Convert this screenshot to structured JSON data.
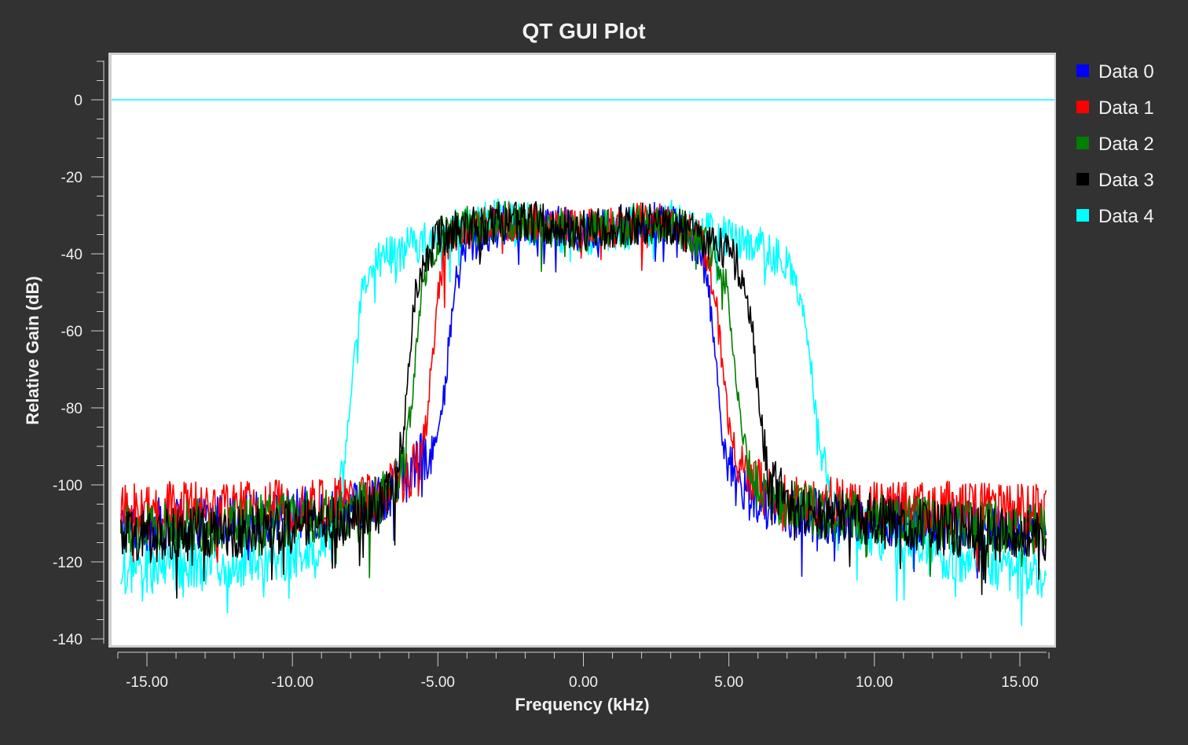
{
  "chart_data": {
    "type": "line",
    "title": "QT GUI Plot",
    "xlabel": "Frequency (kHz)",
    "ylabel": "Relative Gain (dB)",
    "xlim": [
      -16,
      16
    ],
    "ylim": [
      -140,
      10
    ],
    "x_ticks": [
      {
        "value": -15,
        "label": "-15.00"
      },
      {
        "value": -10,
        "label": "-10.00"
      },
      {
        "value": -5,
        "label": "-5.00"
      },
      {
        "value": 0,
        "label": "0.00"
      },
      {
        "value": 5,
        "label": "5.00"
      },
      {
        "value": 10,
        "label": "10.00"
      },
      {
        "value": 15,
        "label": "15.00"
      }
    ],
    "y_ticks": [
      {
        "value": 0,
        "label": "0"
      },
      {
        "value": -20,
        "label": "-20"
      },
      {
        "value": -40,
        "label": "-40"
      },
      {
        "value": -60,
        "label": "-60"
      },
      {
        "value": -80,
        "label": "-80"
      },
      {
        "value": -100,
        "label": "-100"
      },
      {
        "value": -120,
        "label": "-120"
      },
      {
        "value": -140,
        "label": "-140"
      }
    ],
    "grid": false,
    "legend_position": "right",
    "reference_line": {
      "y": 0,
      "color": "#00ffff"
    },
    "series": [
      {
        "name": "Data 0",
        "color": "#0000ff",
        "x": [
          -16,
          -14,
          -12,
          -10,
          -8,
          -7,
          -6.5,
          -6,
          -5.5,
          -5,
          -4.8,
          -4.6,
          -4.4,
          -4.2,
          -4,
          -3,
          -2,
          -1,
          0,
          1,
          2,
          3,
          4,
          4.2,
          4.4,
          4.6,
          4.8,
          5,
          5.5,
          6,
          6.5,
          7,
          8,
          10,
          12,
          14,
          16
        ],
        "y": [
          -111,
          -110,
          -109,
          -108,
          -106,
          -104,
          -100,
          -97,
          -93,
          -88,
          -78,
          -62,
          -48,
          -42,
          -38,
          -33,
          -32,
          -33,
          -34,
          -33,
          -32,
          -32,
          -38,
          -44,
          -56,
          -72,
          -88,
          -96,
          -101,
          -104,
          -106,
          -107,
          -108,
          -109,
          -110,
          -111,
          -112
        ]
      },
      {
        "name": "Data 1",
        "color": "#ff0000",
        "x": [
          -16,
          -14,
          -12,
          -10,
          -8,
          -7,
          -6.5,
          -6,
          -5.6,
          -5.4,
          -5.2,
          -5,
          -4.8,
          -4.5,
          -4,
          -3,
          -2,
          -1,
          0,
          1,
          2,
          3,
          4,
          4.3,
          4.6,
          4.8,
          5,
          5.2,
          5.5,
          6,
          6.5,
          7,
          8,
          10,
          12,
          14,
          16
        ],
        "y": [
          -107,
          -106,
          -106,
          -105,
          -105,
          -103,
          -100,
          -97,
          -92,
          -84,
          -68,
          -50,
          -40,
          -36,
          -34,
          -32,
          -31,
          -33,
          -34,
          -33,
          -32,
          -32,
          -36,
          -42,
          -55,
          -72,
          -84,
          -92,
          -97,
          -100,
          -103,
          -104,
          -105,
          -105,
          -106,
          -106,
          -107
        ]
      },
      {
        "name": "Data 2",
        "color": "#008000",
        "x": [
          -16,
          -14,
          -12,
          -10,
          -8,
          -7,
          -6.5,
          -6.2,
          -6,
          -5.8,
          -5.6,
          -5.4,
          -5.2,
          -5,
          -4.5,
          -4,
          -3,
          -2,
          -1,
          0,
          1,
          2,
          3,
          4,
          4.4,
          4.8,
          5,
          5.2,
          5.4,
          5.6,
          6,
          6.5,
          7,
          8,
          10,
          12,
          14,
          16
        ],
        "y": [
          -112,
          -111,
          -110,
          -109,
          -107,
          -104,
          -101,
          -95,
          -85,
          -70,
          -52,
          -42,
          -38,
          -36,
          -34,
          -33,
          -32,
          -31,
          -33,
          -34,
          -33,
          -32,
          -32,
          -36,
          -40,
          -44,
          -52,
          -68,
          -84,
          -94,
          -100,
          -103,
          -105,
          -107,
          -109,
          -110,
          -111,
          -112
        ]
      },
      {
        "name": "Data 3",
        "color": "#000000",
        "x": [
          -16,
          -14,
          -12,
          -10,
          -8,
          -7,
          -6.5,
          -6.2,
          -6,
          -5.8,
          -5.6,
          -5.4,
          -5.2,
          -5,
          -4.5,
          -4,
          -3,
          -2,
          -1,
          0,
          1,
          2,
          3,
          4,
          4.5,
          5,
          5.4,
          5.8,
          6,
          6.2,
          6.5,
          7,
          8,
          10,
          12,
          14,
          16
        ],
        "y": [
          -114,
          -113,
          -112,
          -111,
          -109,
          -106,
          -100,
          -88,
          -68,
          -52,
          -44,
          -40,
          -38,
          -36,
          -34,
          -33,
          -32,
          -31,
          -33,
          -34,
          -33,
          -32,
          -32,
          -36,
          -38,
          -40,
          -44,
          -58,
          -76,
          -90,
          -100,
          -104,
          -107,
          -109,
          -111,
          -113,
          -114
        ]
      },
      {
        "name": "Data 4",
        "color": "#00ffff",
        "x": [
          -16,
          -14,
          -12,
          -10,
          -9,
          -8.5,
          -8.2,
          -8,
          -7.8,
          -7.6,
          -7.4,
          -7.2,
          -7,
          -6,
          -5,
          -4,
          -3,
          -2,
          -1,
          0,
          1,
          2,
          3,
          4,
          5,
          6,
          7,
          7.3,
          7.6,
          7.8,
          8,
          8.2,
          8.4,
          8.6,
          9,
          10,
          12,
          14,
          16
        ],
        "y": [
          -122,
          -121,
          -120,
          -118,
          -114,
          -108,
          -96,
          -76,
          -62,
          -50,
          -46,
          -44,
          -42,
          -38,
          -35,
          -33,
          -31,
          -32,
          -34,
          -35,
          -34,
          -33,
          -31,
          -34,
          -36,
          -38,
          -42,
          -48,
          -56,
          -68,
          -82,
          -94,
          -100,
          -105,
          -110,
          -113,
          -117,
          -120,
          -124
        ]
      }
    ]
  }
}
